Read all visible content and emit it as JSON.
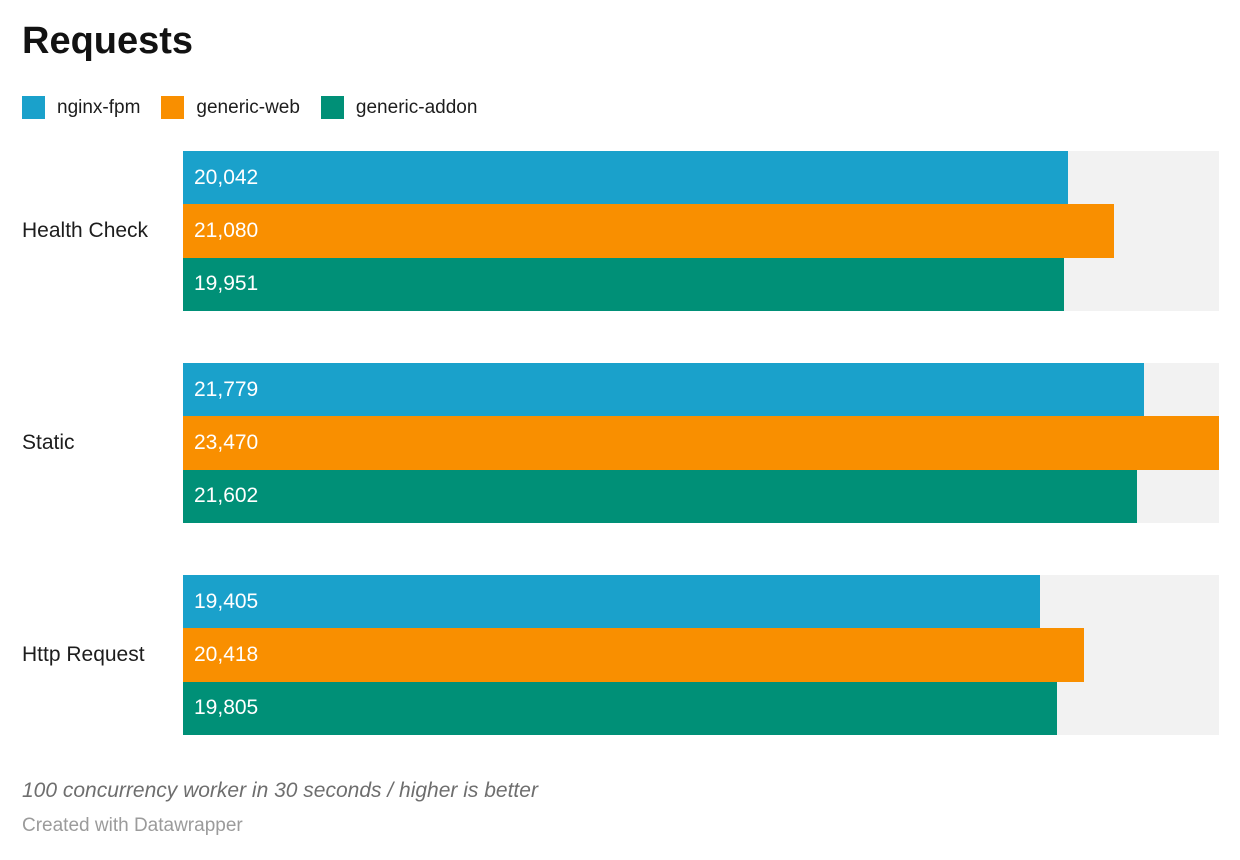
{
  "title": "Requests",
  "footer": {
    "note": "100 concurrency worker in 30 seconds / higher is better",
    "credit": "Created with Datawrapper"
  },
  "colors": {
    "track": "#F2F2F2",
    "title_text": "#121212",
    "category_text": "#1D1D1D",
    "value_text": "#FFFFFF",
    "note_text": "#6E6E6E",
    "credit_text": "#9B9B9B"
  },
  "chart_data": {
    "type": "bar",
    "orientation": "horizontal",
    "title": "Requests",
    "categories": [
      "Health Check",
      "Static",
      "Http Request"
    ],
    "series": [
      {
        "name": "nginx-fpm",
        "color": "#1AA1CB",
        "values": [
          20042,
          21779,
          19405
        ]
      },
      {
        "name": "generic-web",
        "color": "#F98F00",
        "values": [
          21080,
          23470,
          20418
        ]
      },
      {
        "name": "generic-addon",
        "color": "#009077",
        "values": [
          19951,
          21602,
          19805
        ]
      }
    ],
    "xlim": [
      0,
      23470
    ],
    "value_labels_shown": true,
    "value_label_format": "thousands-comma",
    "legend_position": "top",
    "grid": false,
    "axis_shown": false,
    "note": "100 concurrency worker in 30 seconds / higher is better",
    "credit": "Created with Datawrapper"
  }
}
